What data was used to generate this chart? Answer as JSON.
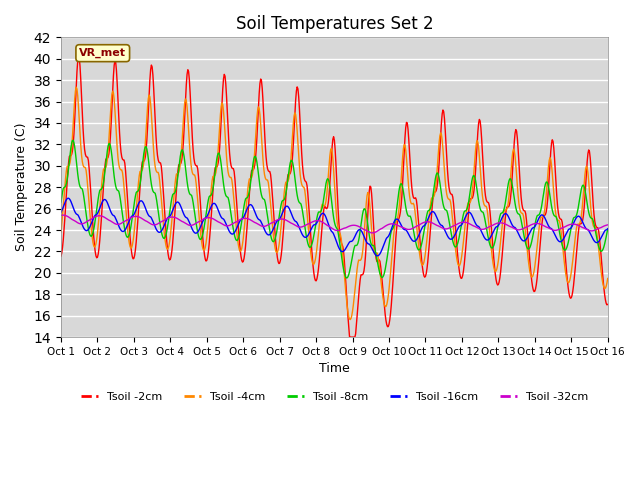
{
  "title": "Soil Temperatures Set 2",
  "xlabel": "Time",
  "ylabel": "Soil Temperature (C)",
  "ylim": [
    14,
    42
  ],
  "xlim": [
    0,
    15
  ],
  "xtick_labels": [
    "Oct 1",
    "Oct 2",
    "Oct 3",
    "Oct 4",
    "Oct 5",
    "Oct 6",
    "Oct 7",
    "Oct 8",
    "Oct 9",
    "Oct 10",
    "Oct 11",
    "Oct 12",
    "Oct 13",
    "Oct 14",
    "Oct 15",
    "Oct 16"
  ],
  "ytick_values": [
    14,
    16,
    18,
    20,
    22,
    24,
    26,
    28,
    30,
    32,
    34,
    36,
    38,
    40,
    42
  ],
  "colors": {
    "Tsoil -2cm": "#ff0000",
    "Tsoil -4cm": "#ff8800",
    "Tsoil -8cm": "#00cc00",
    "Tsoil -16cm": "#0000ff",
    "Tsoil -32cm": "#cc00cc"
  },
  "annotation_label": "VR_met",
  "bg_color": "#d8d8d8",
  "grid_color": "#ffffff",
  "title_fontsize": 12
}
